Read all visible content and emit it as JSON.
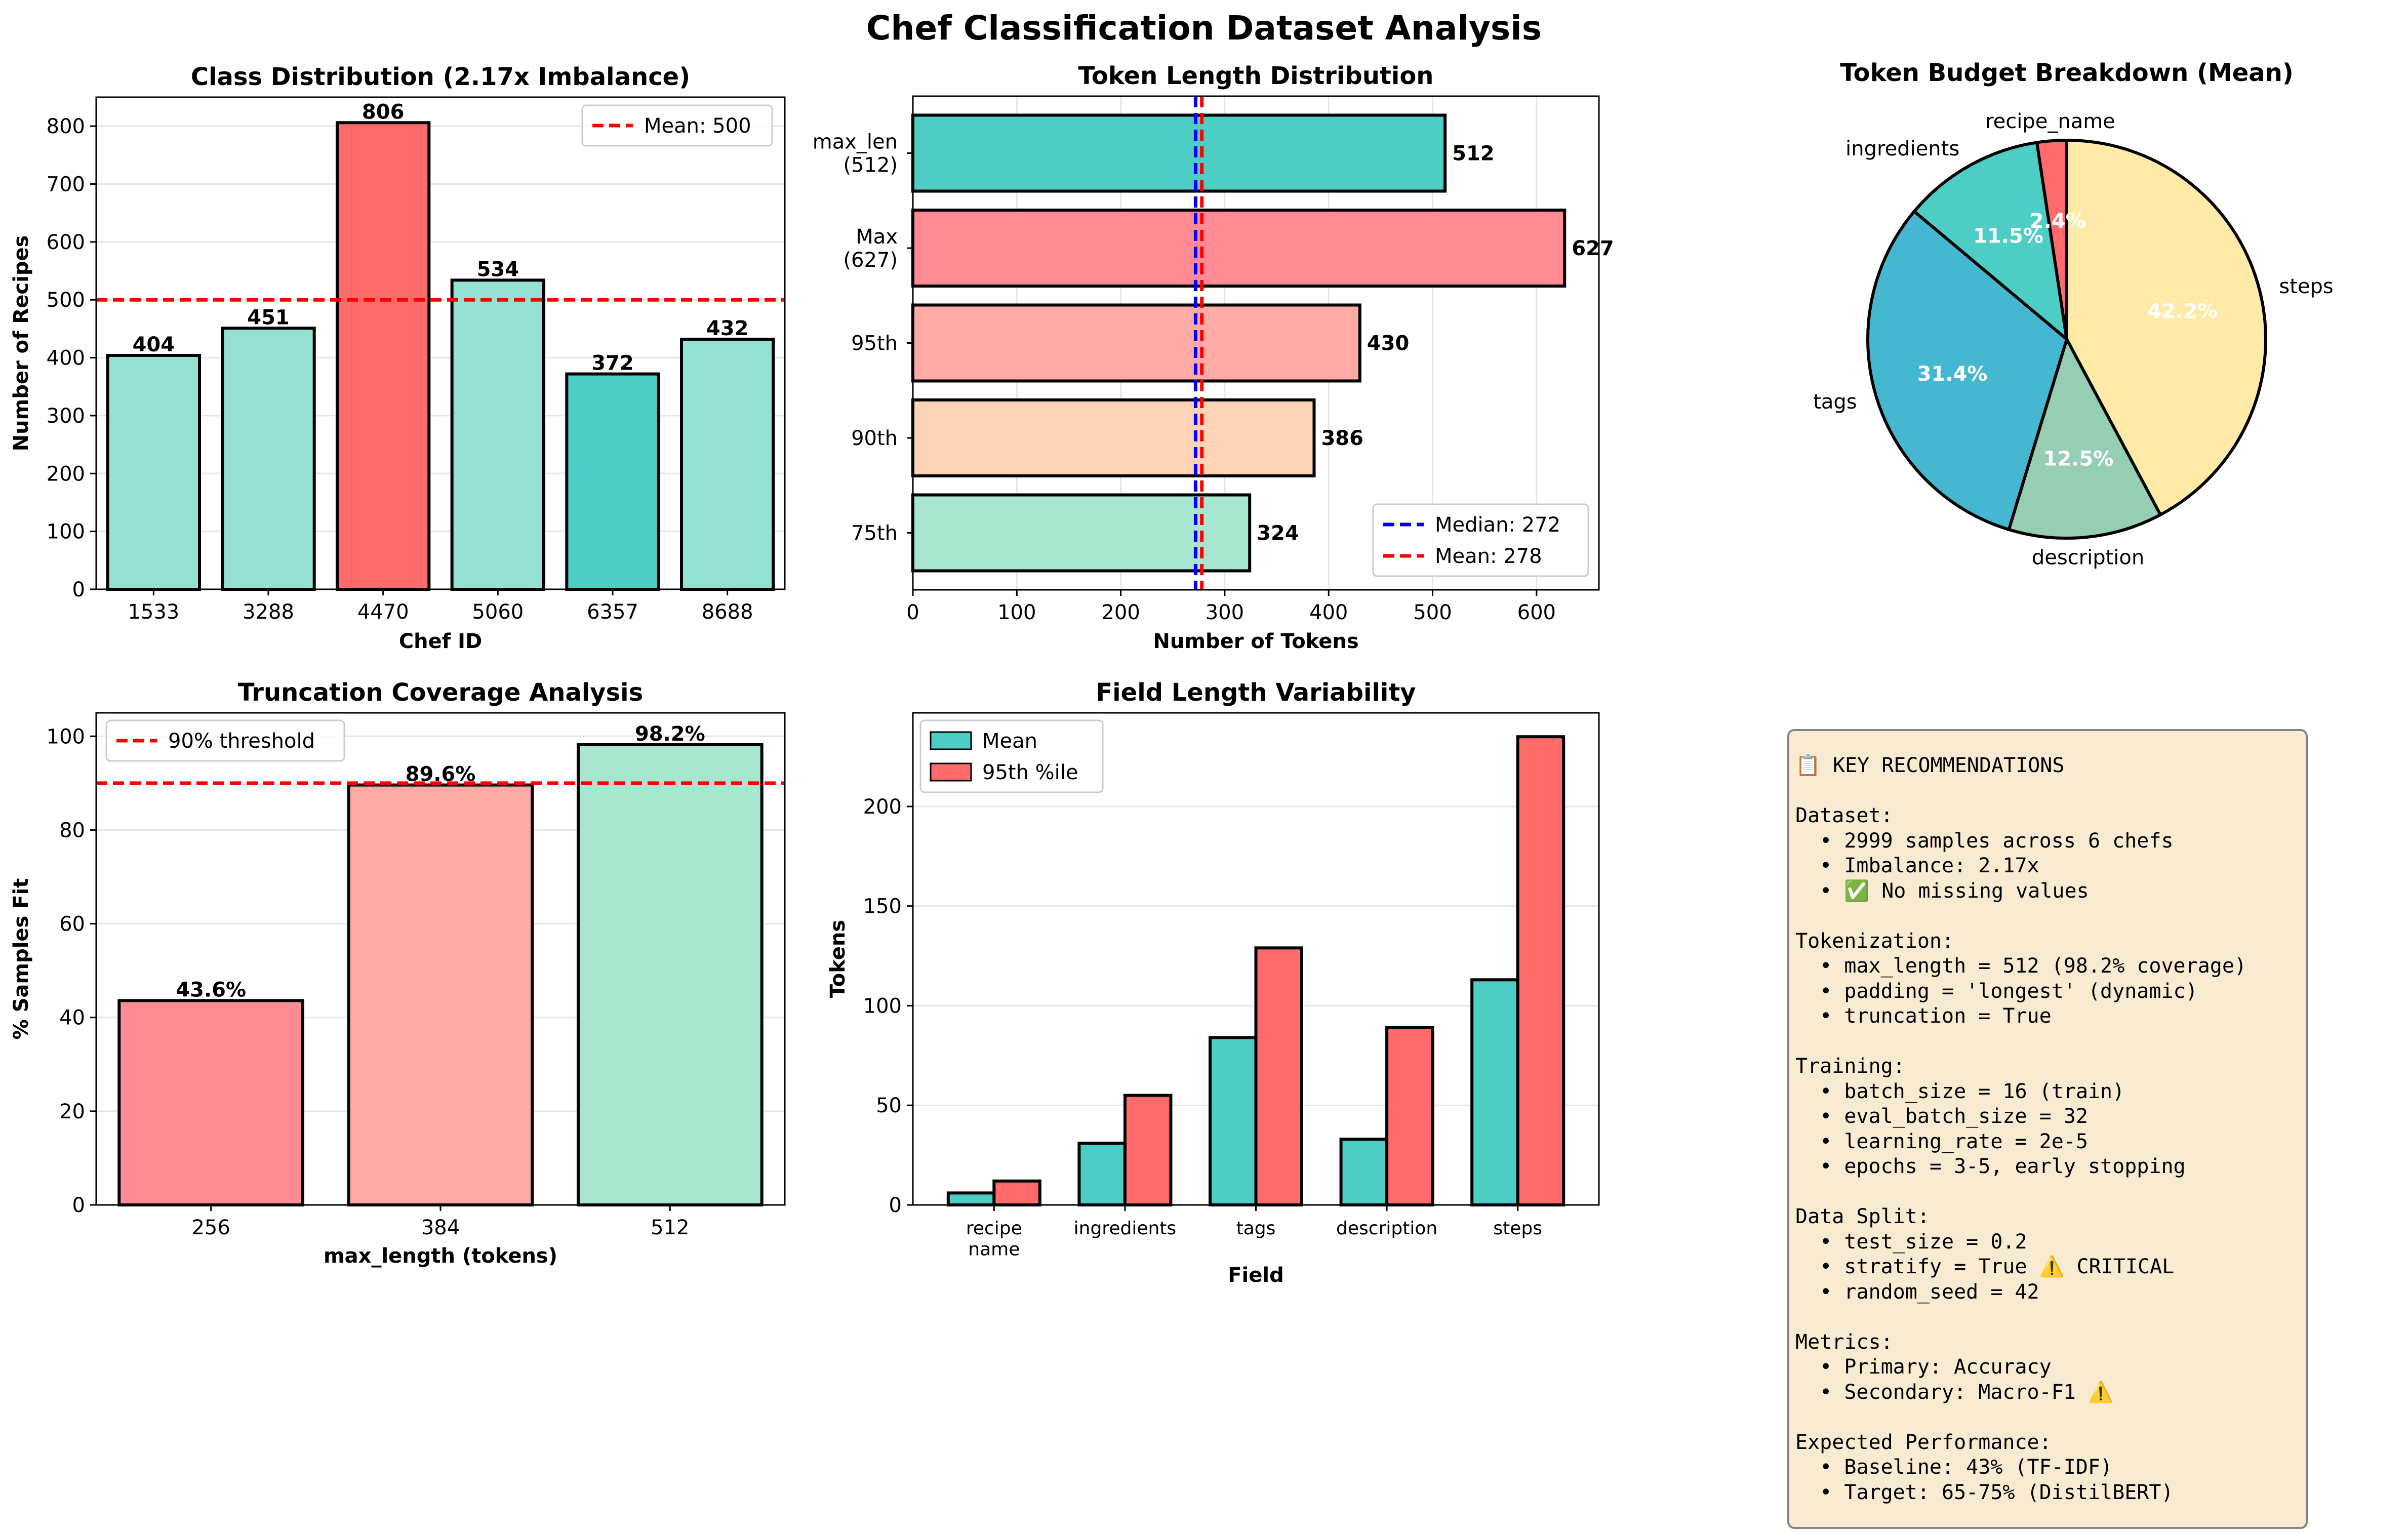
{
  "figure": {
    "title": "Chef Classification Dataset Analysis"
  },
  "colors": {
    "teal": "#4ECDC4",
    "teal_light": "#95E1D3",
    "red": "#FF6B6B",
    "pink": "#FF8B94",
    "salmon": "#FFAAA5",
    "peach": "#FFD3B6",
    "mint": "#A8E6CF",
    "blue": "#45B7D1",
    "sage": "#96CEB4",
    "yellow": "#FFEAA7",
    "mean_line": "#FF0000",
    "median_line": "#0000FF"
  },
  "chart_data": [
    {
      "id": "class_distribution",
      "type": "bar",
      "title": "Class Distribution (2.17x Imbalance)",
      "xlabel": "Chef ID",
      "ylabel": "Number of Recipes",
      "categories": [
        "1533",
        "3288",
        "4470",
        "5060",
        "6357",
        "8688"
      ],
      "values": [
        404,
        451,
        806,
        534,
        372,
        432
      ],
      "value_labels": [
        "404",
        "451",
        "806",
        "534",
        "372",
        "432"
      ],
      "bar_colors": [
        "#95E1D3",
        "#95E1D3",
        "#FF6B6B",
        "#95E1D3",
        "#4ECDC4",
        "#95E1D3"
      ],
      "ylim": [
        0,
        850
      ],
      "yticks": [
        0,
        100,
        200,
        300,
        400,
        500,
        600,
        700,
        800
      ],
      "reference_line": {
        "value": 500,
        "label": "Mean: 500"
      },
      "legend": "top-right",
      "grid": "y"
    },
    {
      "id": "token_length",
      "type": "bar",
      "orientation": "horizontal",
      "title": "Token Length Distribution",
      "xlabel": "Number of Tokens",
      "categories": [
        "max_len\n(512)",
        "Max\n(627)",
        "95th",
        "90th",
        "75th"
      ],
      "values": [
        512,
        627,
        430,
        386,
        324
      ],
      "value_labels": [
        "512",
        "627",
        "430",
        "386",
        "324"
      ],
      "bar_colors": [
        "#4ECDC4",
        "#FF8B94",
        "#FFAAA5",
        "#FFD3B6",
        "#A8E6CF"
      ],
      "xlim": [
        0,
        660
      ],
      "xticks": [
        0,
        100,
        200,
        300,
        400,
        500,
        600
      ],
      "median": {
        "value": 272,
        "label": "Median: 272"
      },
      "mean": {
        "value": 278,
        "label": "Mean: 278"
      },
      "legend": "bottom-right",
      "grid": "x"
    },
    {
      "id": "token_budget",
      "type": "pie",
      "title": "Token Budget Breakdown (Mean)",
      "labels": [
        "steps",
        "description",
        "tags",
        "ingredients",
        "recipe_name"
      ],
      "values": [
        42.2,
        12.5,
        31.4,
        11.5,
        2.4
      ],
      "pct_labels": [
        "42.2%",
        "12.5%",
        "31.4%",
        "11.5%",
        "2.4%"
      ],
      "slice_colors": [
        "#FFEAA7",
        "#96CEB4",
        "#45B7D1",
        "#4ECDC4",
        "#FF6B6B"
      ]
    },
    {
      "id": "truncation_coverage",
      "type": "bar",
      "title": "Truncation Coverage Analysis",
      "xlabel": "max_length (tokens)",
      "ylabel": "% Samples Fit",
      "categories": [
        "256",
        "384",
        "512"
      ],
      "values": [
        43.6,
        89.6,
        98.2
      ],
      "value_labels": [
        "43.6%",
        "89.6%",
        "98.2%"
      ],
      "bar_colors": [
        "#FF8B94",
        "#FFAAA5",
        "#A8E6CF"
      ],
      "ylim": [
        0,
        105
      ],
      "yticks": [
        0,
        20,
        40,
        60,
        80,
        100
      ],
      "reference_line": {
        "value": 90,
        "label": "90% threshold"
      },
      "legend": "top-left",
      "grid": "y"
    },
    {
      "id": "field_variability",
      "type": "bar",
      "title": "Field Length Variability",
      "xlabel": "Field",
      "ylabel": "Tokens",
      "categories": [
        "recipe\nname",
        "ingredients",
        "tags",
        "description",
        "steps"
      ],
      "series": [
        {
          "name": "Mean",
          "values": [
            6,
            31,
            84,
            33,
            113
          ],
          "color": "#4ECDC4"
        },
        {
          "name": "95th %ile",
          "values": [
            12,
            55,
            129,
            89,
            235
          ],
          "color": "#FF6B6B"
        }
      ],
      "ylim": [
        0,
        247
      ],
      "yticks": [
        0,
        50,
        100,
        150,
        200
      ],
      "legend": "top-left",
      "grid": "y"
    }
  ],
  "recommendations": {
    "text": "📋 KEY RECOMMENDATIONS\n\nDataset:\n  • 2999 samples across 6 chefs\n  • Imbalance: 2.17x\n  • ✅ No missing values\n\nTokenization:\n  • max_length = 512 (98.2% coverage)\n  • padding = 'longest' (dynamic)\n  • truncation = True\n\nTraining:\n  • batch_size = 16 (train)\n  • eval_batch_size = 32\n  • learning_rate = 2e-5\n  • epochs = 3-5, early stopping\n\nData Split:\n  • test_size = 0.2\n  • stratify = True ⚠️ CRITICAL\n  • random_seed = 42\n\nMetrics:\n  • Primary: Accuracy\n  • Secondary: Macro-F1 ⚠️\n\nExpected Performance:\n  • Baseline: 43% (TF-IDF)\n  • Target: 65-75% (DistilBERT)"
  }
}
